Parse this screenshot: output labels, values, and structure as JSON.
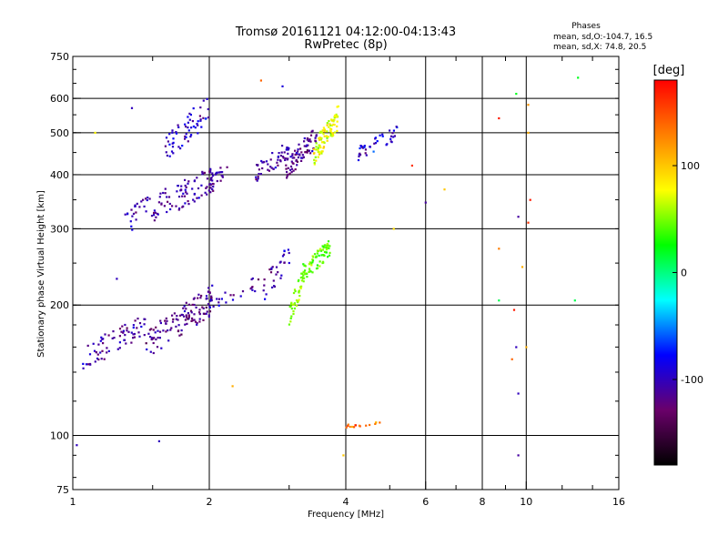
{
  "chart_data": {
    "type": "scatter",
    "title": "Tromsø 20161121 04:12:00-04:13:43",
    "subtitle": "RwPretec (8p)",
    "xlabel": "Frequency [MHz]",
    "ylabel": "Stationary phase Virtual Height [km]",
    "x_scale": "log",
    "y_scale": "log",
    "xlim": [
      1,
      16
    ],
    "ylim": [
      75,
      750
    ],
    "x_ticks": [
      1,
      2,
      4,
      6,
      8,
      10,
      16
    ],
    "x_tick_labels": [
      "1",
      "2",
      "4",
      "6",
      "8",
      "10",
      "16"
    ],
    "y_ticks": [
      75,
      100,
      200,
      300,
      400,
      500,
      600,
      750
    ],
    "y_tick_labels": [
      "75",
      "100",
      "200",
      "300",
      "400",
      "500",
      "600",
      "750"
    ],
    "grid": true,
    "grid_x": [
      2,
      4,
      6,
      8,
      10
    ],
    "grid_y": [
      100,
      200,
      300,
      400,
      500,
      600
    ],
    "legend_title": "Phases",
    "legend_lines": [
      "mean, sd,O:-104.7, 16.5",
      "mean, sd,X:  74.8, 20.5"
    ],
    "legend_position": "top-right",
    "colorbar": {
      "label": "[deg]",
      "min": -180,
      "max": 180,
      "ticks": [
        100,
        0,
        -100
      ],
      "tick_labels": [
        "100",
        "0",
        "-100"
      ],
      "colormap": [
        "#000000",
        "#6a006a",
        "#0000ff",
        "#00ffff",
        "#00ff00",
        "#ffff00",
        "#ff8000",
        "#ff0000"
      ]
    },
    "clusters": [
      {
        "xr": [
          1.05,
          1.45
        ],
        "yr": [
          140,
          195
        ],
        "phase": [
          -110,
          12
        ],
        "n": 70
      },
      {
        "xr": [
          1.45,
          2.05
        ],
        "yr": [
          150,
          225
        ],
        "phase": [
          -115,
          12
        ],
        "n": 120
      },
      {
        "xr": [
          2.0,
          2.6
        ],
        "yr": [
          195,
          235
        ],
        "phase": [
          -105,
          14
        ],
        "n": 25
      },
      {
        "xr": [
          2.6,
          3.0
        ],
        "yr": [
          200,
          280
        ],
        "phase": [
          -110,
          15
        ],
        "n": 30
      },
      {
        "xr": [
          3.0,
          3.2
        ],
        "yr": [
          180,
          240
        ],
        "phase": [
          55,
          10
        ],
        "n": 35
      },
      {
        "xr": [
          3.2,
          3.7
        ],
        "yr": [
          225,
          285
        ],
        "phase": [
          45,
          10
        ],
        "n": 80
      },
      {
        "xr": [
          1.3,
          2.05
        ],
        "yr": [
          290,
          420
        ],
        "phase": [
          -110,
          12
        ],
        "n": 110
      },
      {
        "xr": [
          1.6,
          2.0
        ],
        "yr": [
          420,
          620
        ],
        "phase": [
          -95,
          15
        ],
        "n": 60
      },
      {
        "xr": [
          2.0,
          2.2
        ],
        "yr": [
          360,
          440
        ],
        "phase": [
          -110,
          10
        ],
        "n": 25
      },
      {
        "xr": [
          2.5,
          3.0
        ],
        "yr": [
          380,
          480
        ],
        "phase": [
          -110,
          10
        ],
        "n": 50
      },
      {
        "xr": [
          2.95,
          3.45
        ],
        "yr": [
          390,
          520
        ],
        "phase": [
          -115,
          12
        ],
        "n": 80
      },
      {
        "xr": [
          3.4,
          3.85
        ],
        "yr": [
          420,
          580
        ],
        "phase": [
          75,
          15
        ],
        "n": 90
      },
      {
        "xr": [
          4.25,
          5.2
        ],
        "yr": [
          430,
          520
        ],
        "phase": [
          -95,
          18
        ],
        "n": 40
      },
      {
        "xr": [
          4.0,
          4.8
        ],
        "yr": [
          104,
          108
        ],
        "phase": [
          130,
          20
        ],
        "n": 15
      }
    ],
    "scattered_points": [
      {
        "x": 1.02,
        "y": 95,
        "phase": -100
      },
      {
        "x": 1.12,
        "y": 500,
        "phase": 80
      },
      {
        "x": 1.25,
        "y": 230,
        "phase": -100
      },
      {
        "x": 1.55,
        "y": 97,
        "phase": -100
      },
      {
        "x": 1.35,
        "y": 570,
        "phase": -100
      },
      {
        "x": 2.25,
        "y": 130,
        "phase": 110
      },
      {
        "x": 2.6,
        "y": 660,
        "phase": 140
      },
      {
        "x": 2.9,
        "y": 640,
        "phase": -90
      },
      {
        "x": 3.95,
        "y": 90,
        "phase": 100
      },
      {
        "x": 4.05,
        "y": 106,
        "phase": 130
      },
      {
        "x": 5.1,
        "y": 300,
        "phase": 90
      },
      {
        "x": 5.6,
        "y": 420,
        "phase": 160
      },
      {
        "x": 6.0,
        "y": 345,
        "phase": -110
      },
      {
        "x": 6.6,
        "y": 370,
        "phase": 100
      },
      {
        "x": 8.7,
        "y": 540,
        "phase": 170
      },
      {
        "x": 8.7,
        "y": 270,
        "phase": 130
      },
      {
        "x": 8.7,
        "y": 205,
        "phase": 10
      },
      {
        "x": 9.4,
        "y": 195,
        "phase": 170
      },
      {
        "x": 9.5,
        "y": 160,
        "phase": -100
      },
      {
        "x": 9.6,
        "y": 125,
        "phase": -100
      },
      {
        "x": 9.6,
        "y": 90,
        "phase": -110
      },
      {
        "x": 9.5,
        "y": 615,
        "phase": 20
      },
      {
        "x": 9.6,
        "y": 320,
        "phase": -110
      },
      {
        "x": 10.1,
        "y": 580,
        "phase": 120
      },
      {
        "x": 10.2,
        "y": 350,
        "phase": 170
      },
      {
        "x": 10.1,
        "y": 310,
        "phase": 160
      },
      {
        "x": 10.0,
        "y": 160,
        "phase": 110
      },
      {
        "x": 9.8,
        "y": 245,
        "phase": 110
      },
      {
        "x": 12.8,
        "y": 205,
        "phase": 10
      },
      {
        "x": 13.0,
        "y": 670,
        "phase": 20
      },
      {
        "x": 10.1,
        "y": 500,
        "phase": 110
      },
      {
        "x": 9.3,
        "y": 150,
        "phase": 140
      }
    ]
  }
}
